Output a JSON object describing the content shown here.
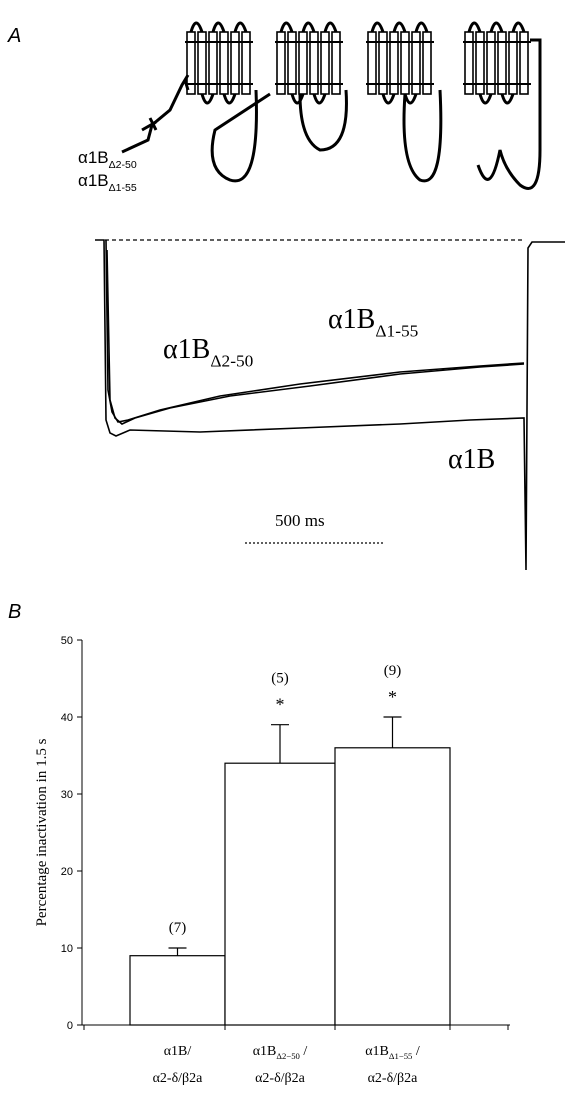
{
  "panel_a": {
    "label": "A",
    "construct_labels": [
      {
        "text": "α1B",
        "sub": "Δ2-50"
      },
      {
        "text": "α1B",
        "sub": "Δ1-55"
      }
    ],
    "trace_labels": [
      {
        "text": "α1B",
        "sub": "Δ2-50"
      },
      {
        "text": "α1B",
        "sub": "Δ1-55"
      },
      {
        "text": "α1B"
      }
    ],
    "scale_bar": "500 ms"
  },
  "chart_data": {
    "type": "bar",
    "panel_label": "B",
    "ylabel": "Percentage inactivation in 1.5 s",
    "categories": [
      {
        "line1": {
          "text": "α1B/"
        },
        "line2": "α2-δ/β2a"
      },
      {
        "line1": {
          "text": "α1B",
          "sub": "Δ2−50",
          "after": " /"
        },
        "line2": "α2-δ/β2a"
      },
      {
        "line1": {
          "text": "α1B",
          "sub": "Δ1−55",
          "after": " /"
        },
        "line2": "α2-δ/β2a"
      }
    ],
    "values": [
      9,
      34,
      36
    ],
    "errors": [
      1,
      5,
      4
    ],
    "n_labels": [
      "(7)",
      "(5)",
      "(9)"
    ],
    "significance": [
      null,
      "*",
      "*"
    ],
    "color": "#ffffff",
    "ylim": [
      0,
      50
    ],
    "yticks": [
      0,
      10,
      20,
      30,
      40,
      50
    ]
  }
}
